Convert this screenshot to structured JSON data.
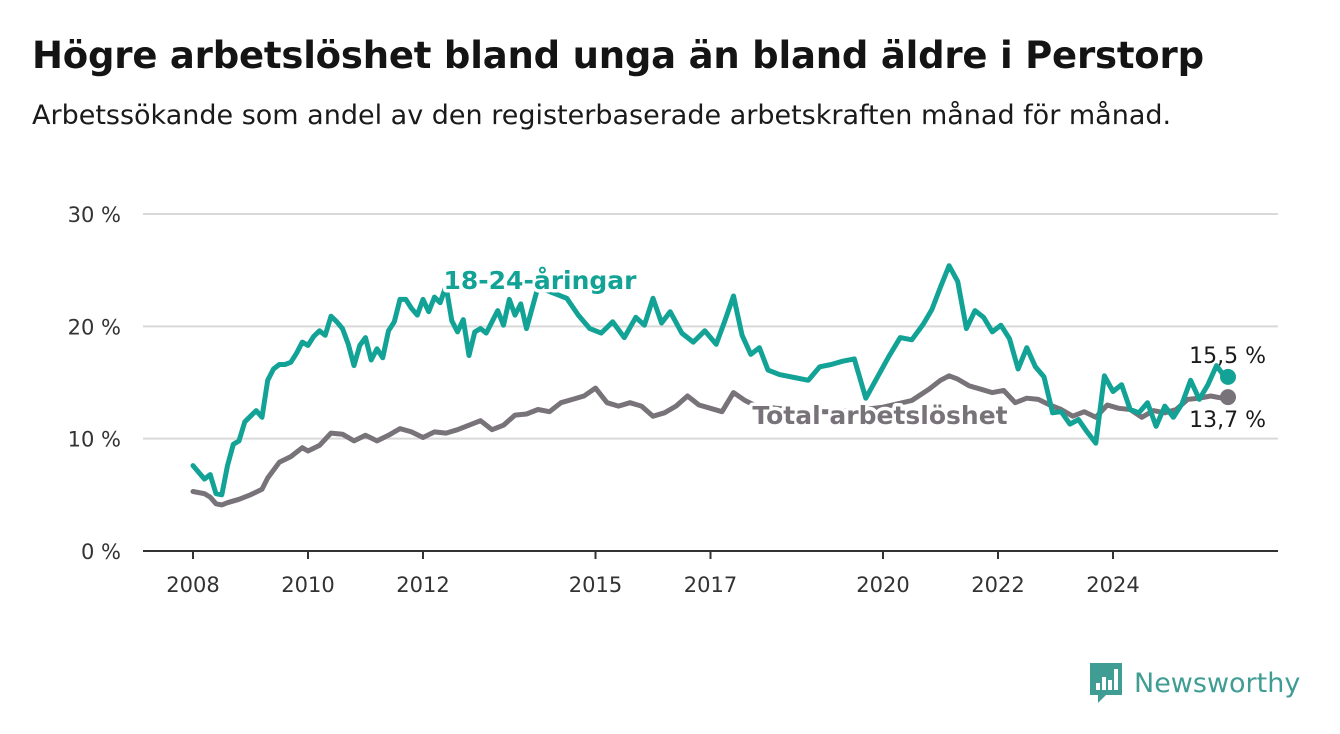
{
  "title": "Högre arbetslöshet bland unga än bland äldre i Perstorp",
  "subtitle": "Arbetssökande som andel av den registerbaserade arbetskraften månad för månad.",
  "brand": {
    "name": "Newsworthy",
    "icon": "newsworthy-logo-icon"
  },
  "colors": {
    "youth": "#13a396",
    "total": "#777379",
    "grid": "#d9d9d9",
    "axis": "#333333",
    "brand": "#3f9d94"
  },
  "chart_data": {
    "type": "line",
    "ylim": [
      0,
      30
    ],
    "xlim": [
      2008,
      2026
    ],
    "grid": true,
    "y_ticks": [
      {
        "value": 0,
        "label": "0 %"
      },
      {
        "value": 10,
        "label": "10 %"
      },
      {
        "value": 20,
        "label": "20 %"
      },
      {
        "value": 30,
        "label": "30 %"
      }
    ],
    "x_ticks": [
      {
        "value": 2008,
        "label": "2008"
      },
      {
        "value": 2010,
        "label": "2010"
      },
      {
        "value": 2012,
        "label": "2012"
      },
      {
        "value": 2015,
        "label": "2015"
      },
      {
        "value": 2017,
        "label": "2017"
      },
      {
        "value": 2020,
        "label": "2020"
      },
      {
        "value": 2022,
        "label": "2022"
      },
      {
        "value": 2024,
        "label": "2024"
      }
    ],
    "series": [
      {
        "name": "18-24-åringar",
        "color": "#13a396",
        "end_label": "15,5 %",
        "points": [
          [
            2008.0,
            7.6
          ],
          [
            2008.2,
            6.4
          ],
          [
            2008.3,
            6.8
          ],
          [
            2008.4,
            5.1
          ],
          [
            2008.5,
            5.0
          ],
          [
            2008.6,
            7.6
          ],
          [
            2008.7,
            9.5
          ],
          [
            2008.8,
            9.8
          ],
          [
            2008.9,
            11.5
          ],
          [
            2009.0,
            12.0
          ],
          [
            2009.1,
            12.5
          ],
          [
            2009.2,
            11.9
          ],
          [
            2009.3,
            15.2
          ],
          [
            2009.4,
            16.2
          ],
          [
            2009.5,
            16.6
          ],
          [
            2009.6,
            16.6
          ],
          [
            2009.7,
            16.8
          ],
          [
            2009.8,
            17.6
          ],
          [
            2009.9,
            18.6
          ],
          [
            2010.0,
            18.3
          ],
          [
            2010.1,
            19.1
          ],
          [
            2010.2,
            19.6
          ],
          [
            2010.3,
            19.2
          ],
          [
            2010.4,
            20.9
          ],
          [
            2010.5,
            20.4
          ],
          [
            2010.6,
            19.8
          ],
          [
            2010.7,
            18.4
          ],
          [
            2010.8,
            16.5
          ],
          [
            2010.9,
            18.3
          ],
          [
            2011.0,
            19.0
          ],
          [
            2011.1,
            17.0
          ],
          [
            2011.2,
            18.0
          ],
          [
            2011.3,
            17.2
          ],
          [
            2011.4,
            19.6
          ],
          [
            2011.5,
            20.4
          ],
          [
            2011.6,
            22.4
          ],
          [
            2011.7,
            22.4
          ],
          [
            2011.8,
            21.6
          ],
          [
            2011.9,
            21.0
          ],
          [
            2012.0,
            22.4
          ],
          [
            2012.1,
            21.3
          ],
          [
            2012.2,
            22.6
          ],
          [
            2012.3,
            22.1
          ],
          [
            2012.4,
            23.6
          ],
          [
            2012.5,
            20.5
          ],
          [
            2012.6,
            19.5
          ],
          [
            2012.7,
            20.6
          ],
          [
            2012.8,
            17.4
          ],
          [
            2012.9,
            19.5
          ],
          [
            2013.0,
            19.8
          ],
          [
            2013.1,
            19.4
          ],
          [
            2013.2,
            20.4
          ],
          [
            2013.3,
            21.4
          ],
          [
            2013.4,
            20.1
          ],
          [
            2013.5,
            22.4
          ],
          [
            2013.6,
            21.0
          ],
          [
            2013.7,
            22.0
          ],
          [
            2013.8,
            19.8
          ],
          [
            2014.0,
            23.5
          ],
          [
            2014.5,
            22.5
          ],
          [
            2014.7,
            21.0
          ],
          [
            2014.9,
            19.8
          ],
          [
            2015.1,
            19.4
          ],
          [
            2015.3,
            20.4
          ],
          [
            2015.5,
            19.0
          ],
          [
            2015.7,
            20.8
          ],
          [
            2015.85,
            20.1
          ],
          [
            2016.0,
            22.5
          ],
          [
            2016.15,
            20.3
          ],
          [
            2016.3,
            21.3
          ],
          [
            2016.5,
            19.4
          ],
          [
            2016.7,
            18.6
          ],
          [
            2016.9,
            19.6
          ],
          [
            2017.1,
            18.4
          ],
          [
            2017.25,
            20.5
          ],
          [
            2017.4,
            22.7
          ],
          [
            2017.55,
            19.2
          ],
          [
            2017.7,
            17.5
          ],
          [
            2017.85,
            18.1
          ],
          [
            2018.0,
            16.1
          ],
          [
            2018.2,
            15.7
          ],
          [
            2018.5,
            15.4
          ],
          [
            2018.7,
            15.2
          ],
          [
            2018.9,
            16.4
          ],
          [
            2019.1,
            16.6
          ],
          [
            2019.3,
            16.9
          ],
          [
            2019.5,
            17.1
          ],
          [
            2019.7,
            13.6
          ],
          [
            2020.1,
            17.3
          ],
          [
            2020.3,
            19.0
          ],
          [
            2020.5,
            18.8
          ],
          [
            2020.7,
            20.2
          ],
          [
            2020.85,
            21.5
          ],
          [
            2021.0,
            23.5
          ],
          [
            2021.15,
            25.4
          ],
          [
            2021.3,
            24.0
          ],
          [
            2021.45,
            19.8
          ],
          [
            2021.6,
            21.4
          ],
          [
            2021.75,
            20.8
          ],
          [
            2021.9,
            19.5
          ],
          [
            2022.05,
            20.1
          ],
          [
            2022.2,
            18.9
          ],
          [
            2022.35,
            16.2
          ],
          [
            2022.5,
            18.1
          ],
          [
            2022.65,
            16.4
          ],
          [
            2022.8,
            15.5
          ],
          [
            2022.95,
            12.3
          ],
          [
            2023.1,
            12.4
          ],
          [
            2023.25,
            11.3
          ],
          [
            2023.4,
            11.7
          ],
          [
            2023.55,
            10.6
          ],
          [
            2023.7,
            9.6
          ],
          [
            2023.85,
            15.6
          ],
          [
            2024.0,
            14.2
          ],
          [
            2024.15,
            14.8
          ],
          [
            2024.3,
            12.6
          ],
          [
            2024.45,
            12.3
          ],
          [
            2024.6,
            13.2
          ],
          [
            2024.75,
            11.1
          ],
          [
            2024.9,
            12.9
          ],
          [
            2025.05,
            11.9
          ],
          [
            2025.2,
            13.1
          ],
          [
            2025.35,
            15.2
          ],
          [
            2025.5,
            13.5
          ],
          [
            2025.65,
            14.8
          ],
          [
            2025.8,
            16.5
          ],
          [
            2025.9,
            15.8
          ],
          [
            2026.0,
            15.5
          ]
        ]
      },
      {
        "name": "Total arbetslöshet",
        "color": "#777379",
        "end_label": "13,7 %",
        "points": [
          [
            2008.0,
            5.3
          ],
          [
            2008.2,
            5.1
          ],
          [
            2008.3,
            4.8
          ],
          [
            2008.4,
            4.2
          ],
          [
            2008.5,
            4.1
          ],
          [
            2008.6,
            4.3
          ],
          [
            2008.8,
            4.6
          ],
          [
            2009.0,
            5.0
          ],
          [
            2009.2,
            5.5
          ],
          [
            2009.3,
            6.5
          ],
          [
            2009.5,
            7.9
          ],
          [
            2009.7,
            8.4
          ],
          [
            2009.9,
            9.2
          ],
          [
            2010.0,
            8.9
          ],
          [
            2010.2,
            9.4
          ],
          [
            2010.4,
            10.5
          ],
          [
            2010.6,
            10.4
          ],
          [
            2010.8,
            9.8
          ],
          [
            2011.0,
            10.3
          ],
          [
            2011.2,
            9.8
          ],
          [
            2011.4,
            10.3
          ],
          [
            2011.6,
            10.9
          ],
          [
            2011.8,
            10.6
          ],
          [
            2012.0,
            10.1
          ],
          [
            2012.2,
            10.6
          ],
          [
            2012.4,
            10.5
          ],
          [
            2012.6,
            10.8
          ],
          [
            2012.8,
            11.2
          ],
          [
            2013.0,
            11.6
          ],
          [
            2013.2,
            10.8
          ],
          [
            2013.4,
            11.2
          ],
          [
            2013.6,
            12.1
          ],
          [
            2013.8,
            12.2
          ],
          [
            2014.0,
            12.6
          ],
          [
            2014.2,
            12.4
          ],
          [
            2014.4,
            13.2
          ],
          [
            2014.6,
            13.5
          ],
          [
            2014.8,
            13.8
          ],
          [
            2015.0,
            14.5
          ],
          [
            2015.2,
            13.2
          ],
          [
            2015.4,
            12.9
          ],
          [
            2015.6,
            13.2
          ],
          [
            2015.8,
            12.9
          ],
          [
            2016.0,
            12.0
          ],
          [
            2016.2,
            12.3
          ],
          [
            2016.4,
            12.9
          ],
          [
            2016.6,
            13.8
          ],
          [
            2016.8,
            13.0
          ],
          [
            2017.0,
            12.7
          ],
          [
            2017.2,
            12.4
          ],
          [
            2017.4,
            14.1
          ],
          [
            2017.6,
            13.4
          ],
          [
            2017.8,
            12.9
          ],
          [
            2018.0,
            12.8
          ],
          [
            2018.5,
            12.5
          ],
          [
            2019.0,
            12.4
          ],
          [
            2019.5,
            12.5
          ],
          [
            2020.0,
            12.8
          ],
          [
            2020.5,
            13.4
          ],
          [
            2020.8,
            14.4
          ],
          [
            2021.0,
            15.2
          ],
          [
            2021.15,
            15.6
          ],
          [
            2021.3,
            15.3
          ],
          [
            2021.5,
            14.7
          ],
          [
            2021.7,
            14.4
          ],
          [
            2021.9,
            14.1
          ],
          [
            2022.1,
            14.3
          ],
          [
            2022.3,
            13.2
          ],
          [
            2022.5,
            13.6
          ],
          [
            2022.7,
            13.5
          ],
          [
            2022.9,
            13.0
          ],
          [
            2023.1,
            12.6
          ],
          [
            2023.3,
            12.0
          ],
          [
            2023.5,
            12.4
          ],
          [
            2023.7,
            11.9
          ],
          [
            2023.9,
            13.0
          ],
          [
            2024.1,
            12.7
          ],
          [
            2024.3,
            12.6
          ],
          [
            2024.5,
            11.9
          ],
          [
            2024.7,
            12.5
          ],
          [
            2024.9,
            12.3
          ],
          [
            2025.1,
            12.6
          ],
          [
            2025.3,
            13.5
          ],
          [
            2025.5,
            13.6
          ],
          [
            2025.7,
            13.8
          ],
          [
            2025.9,
            13.6
          ],
          [
            2026.0,
            13.7
          ]
        ]
      }
    ]
  }
}
